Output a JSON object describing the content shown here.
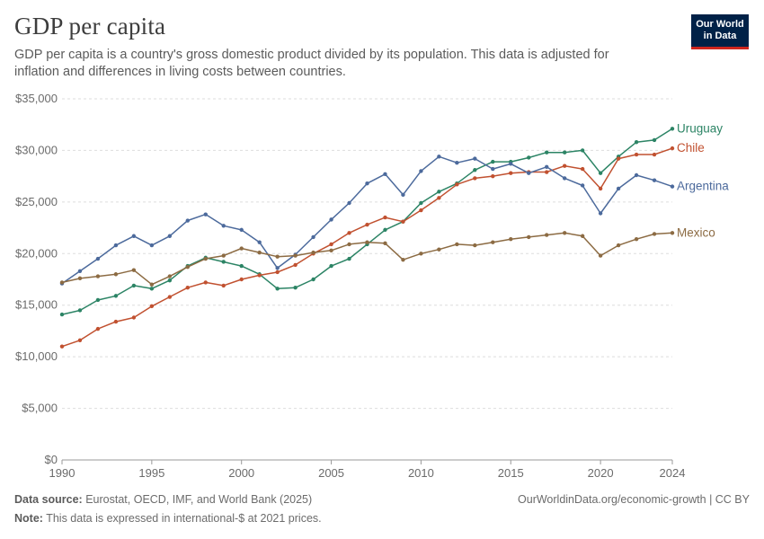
{
  "header": {
    "title": "GDP per capita",
    "subtitle": "GDP per capita is a country's gross domestic product divided by its population. This data is adjusted for inflation and differences in living costs between countries.",
    "logo_line1": "Our World",
    "logo_line2": "in Data"
  },
  "footer": {
    "source_label": "Data source:",
    "source_text": "Eurostat, OECD, IMF, and World Bank (2025)",
    "note_label": "Note:",
    "note_text": "This data is expressed in international-$ at 2021 prices.",
    "url_text": "OurWorldinData.org/economic-growth | CC BY"
  },
  "chart_data": {
    "type": "line",
    "title": "GDP per capita",
    "ylim": [
      0,
      35000
    ],
    "xlim": [
      1990,
      2024
    ],
    "grid": "horizontal dashed",
    "legend": "labels at line ends, right",
    "y_ticks": [
      {
        "value": 0,
        "label": "$0"
      },
      {
        "value": 5000,
        "label": "$5,000"
      },
      {
        "value": 10000,
        "label": "$10,000"
      },
      {
        "value": 15000,
        "label": "$15,000"
      },
      {
        "value": 20000,
        "label": "$20,000"
      },
      {
        "value": 25000,
        "label": "$25,000"
      },
      {
        "value": 30000,
        "label": "$30,000"
      },
      {
        "value": 35000,
        "label": "$35,000"
      }
    ],
    "x_ticks": [
      {
        "value": 1990,
        "label": "1990"
      },
      {
        "value": 1995,
        "label": "1995"
      },
      {
        "value": 2000,
        "label": "2000"
      },
      {
        "value": 2005,
        "label": "2005"
      },
      {
        "value": 2010,
        "label": "2010"
      },
      {
        "value": 2015,
        "label": "2015"
      },
      {
        "value": 2020,
        "label": "2020"
      },
      {
        "value": 2024,
        "label": "2024"
      }
    ],
    "x": [
      1990,
      1991,
      1992,
      1993,
      1994,
      1995,
      1996,
      1997,
      1998,
      1999,
      2000,
      2001,
      2002,
      2003,
      2004,
      2005,
      2006,
      2007,
      2008,
      2009,
      2010,
      2011,
      2012,
      2013,
      2014,
      2015,
      2016,
      2017,
      2018,
      2019,
      2020,
      2021,
      2022,
      2023,
      2024
    ],
    "series": [
      {
        "name": "Uruguay",
        "color": "#2c8465",
        "values": [
          14100,
          14500,
          15500,
          15900,
          16900,
          16600,
          17400,
          18800,
          19600,
          19200,
          18800,
          18000,
          16600,
          16700,
          17500,
          18800,
          19500,
          20900,
          22300,
          23100,
          24900,
          26000,
          26800,
          28100,
          28900,
          28900,
          29300,
          29800,
          29800,
          30000,
          27800,
          29400,
          30800,
          31000,
          32100
        ]
      },
      {
        "name": "Chile",
        "color": "#c15130",
        "values": [
          11000,
          11600,
          12700,
          13400,
          13800,
          14900,
          15800,
          16700,
          17200,
          16900,
          17500,
          17900,
          18200,
          18900,
          20000,
          20900,
          22000,
          22800,
          23500,
          23100,
          24200,
          25400,
          26700,
          27300,
          27500,
          27800,
          27900,
          27900,
          28500,
          28200,
          26300,
          29200,
          29600,
          29600,
          30200
        ]
      },
      {
        "name": "Argentina",
        "color": "#4c6a9c",
        "values": [
          17100,
          18300,
          19500,
          20800,
          21700,
          20800,
          21700,
          23200,
          23800,
          22700,
          22300,
          21100,
          18600,
          19900,
          21600,
          23300,
          24900,
          26800,
          27700,
          25700,
          28000,
          29400,
          28800,
          29200,
          28200,
          28700,
          27800,
          28400,
          27300,
          26600,
          23900,
          26300,
          27600,
          27100,
          26500
        ]
      },
      {
        "name": "Mexico",
        "color": "#8c6b43",
        "values": [
          17200,
          17600,
          17800,
          18000,
          18400,
          17000,
          17800,
          18700,
          19500,
          19800,
          20500,
          20100,
          19700,
          19800,
          20100,
          20300,
          20900,
          21100,
          21000,
          19400,
          20000,
          20400,
          20900,
          20800,
          21100,
          21400,
          21600,
          21800,
          22000,
          21700,
          19800,
          20800,
          21400,
          21900,
          22000
        ]
      }
    ]
  }
}
